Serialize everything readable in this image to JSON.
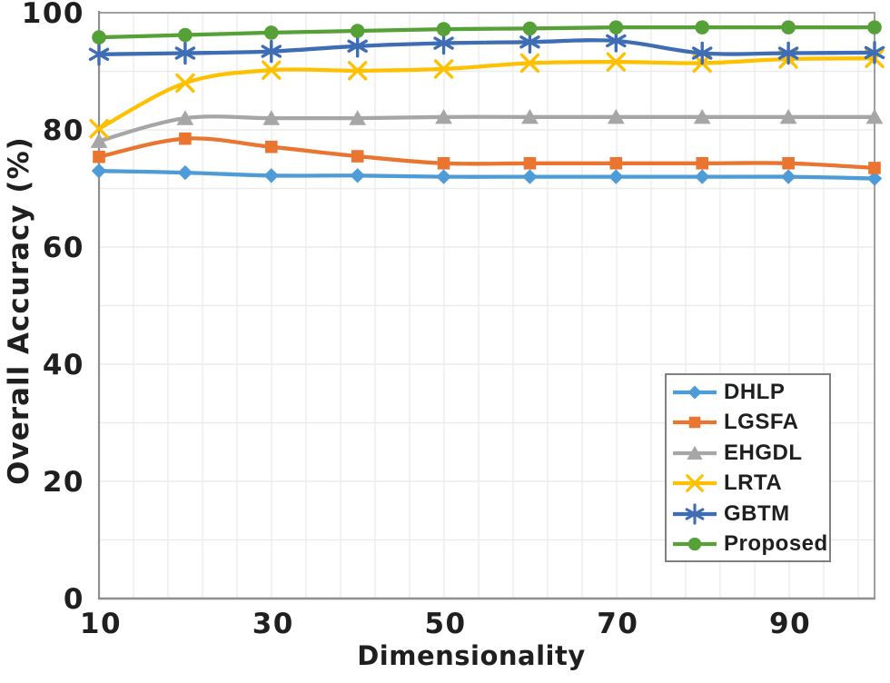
{
  "chart_data": {
    "type": "line",
    "title": "",
    "xlabel": "Dimensionality",
    "ylabel": "Overall Accuracy (%)",
    "x": [
      10,
      20,
      30,
      40,
      50,
      60,
      70,
      80,
      90,
      100
    ],
    "xticks": [
      10,
      30,
      50,
      70,
      90
    ],
    "yticks": [
      0,
      20,
      40,
      60,
      80,
      100
    ],
    "xlim": [
      10,
      100
    ],
    "ylim": [
      0,
      100
    ],
    "grid": "both",
    "line_style": "smooth",
    "legend_position": "inside-bottom-right",
    "colors": {
      "plot_background": "#FFFFFF",
      "border": "#A0A0A0",
      "axis_line": "#8F8F8F",
      "gridline": "#ECECEC",
      "text": "#1F1F1F",
      "legend_border": "#7F7F7F"
    },
    "series": [
      {
        "name": "DHLP",
        "marker": "diamond",
        "color": "#4D9BD7",
        "values": [
          73.0,
          72.7,
          72.2,
          72.2,
          72.0,
          72.0,
          72.0,
          72.0,
          72.0,
          71.7
        ]
      },
      {
        "name": "LGSFA",
        "marker": "square",
        "color": "#E97530",
        "values": [
          75.4,
          78.5,
          77.1,
          75.5,
          74.3,
          74.3,
          74.3,
          74.3,
          74.3,
          73.5
        ]
      },
      {
        "name": "EHGDL",
        "marker": "triangle",
        "color": "#A6A6A6",
        "values": [
          78.1,
          82.0,
          82.0,
          82.0,
          82.2,
          82.2,
          82.2,
          82.2,
          82.2,
          82.2
        ]
      },
      {
        "name": "LRTA",
        "marker": "x",
        "color": "#FFC000",
        "values": [
          80.2,
          88.0,
          90.2,
          90.1,
          90.4,
          91.4,
          91.6,
          91.4,
          92.1,
          92.2
        ]
      },
      {
        "name": "GBTM",
        "marker": "asterisk",
        "color": "#3E6CB5",
        "values": [
          92.9,
          93.1,
          93.4,
          94.3,
          94.8,
          95.0,
          95.2,
          93.1,
          93.1,
          93.2
        ]
      },
      {
        "name": "Proposed",
        "marker": "circle",
        "color": "#55A037",
        "values": [
          95.8,
          96.2,
          96.6,
          96.9,
          97.2,
          97.3,
          97.5,
          97.5,
          97.5,
          97.5
        ]
      }
    ]
  }
}
